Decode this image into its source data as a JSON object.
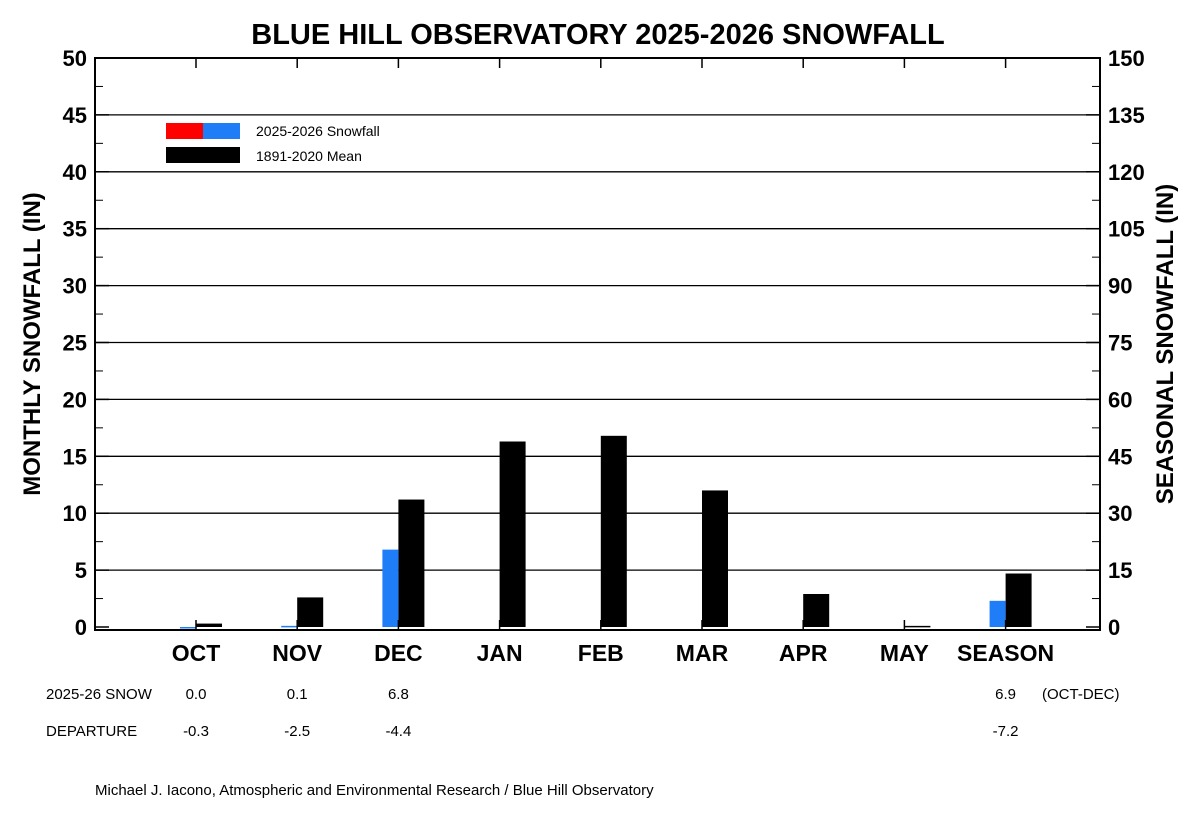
{
  "chart_data": {
    "type": "bar",
    "title": "BLUE HILL OBSERVATORY 2025-2026 SNOWFALL",
    "ylabel": "MONTHLY SNOWFALL (IN)",
    "ylabel_right": "SEASONAL SNOWFALL (IN)",
    "ylim": [
      0,
      50
    ],
    "ylim_right": [
      0,
      150
    ],
    "yticks": [
      0,
      5,
      10,
      15,
      20,
      25,
      30,
      35,
      40,
      45,
      50
    ],
    "yticks_right": [
      0,
      15,
      30,
      45,
      60,
      75,
      90,
      105,
      120,
      135,
      150
    ],
    "grid": true,
    "categories": [
      "OCT",
      "NOV",
      "DEC",
      "JAN",
      "FEB",
      "MAR",
      "APR",
      "MAY",
      "SEASON"
    ],
    "series": [
      {
        "name": "2025-2026 Snowfall",
        "color": "#1e7df7",
        "axis": "left (months) / right (SEASON)",
        "values": [
          0.0,
          0.1,
          6.8,
          null,
          null,
          null,
          null,
          null,
          6.9
        ]
      },
      {
        "name": "1891-2020 Mean",
        "color": "#000000",
        "axis": "left (months) / right (SEASON)",
        "values": [
          0.3,
          2.6,
          11.2,
          16.3,
          16.8,
          12.0,
          2.9,
          0.1,
          14.1
        ]
      }
    ],
    "legend": {
      "placement": "top-left",
      "entries": [
        {
          "label": "2025-2026 Snowfall",
          "colors": [
            "#ff0000",
            "#1e7df7"
          ]
        },
        {
          "label": "1891-2020 Mean",
          "colors": [
            "#000000"
          ]
        }
      ]
    },
    "table": {
      "rows": [
        {
          "label": "2025-26 SNOW",
          "values": [
            "0.0",
            "0.1",
            "6.8",
            "",
            "",
            "",
            "",
            "",
            "6.9"
          ],
          "note": "(OCT-DEC)"
        },
        {
          "label": "DEPARTURE",
          "values": [
            "-0.3",
            "-2.5",
            "-4.4",
            "",
            "",
            "",
            "",
            "",
            "-7.2"
          ],
          "note": ""
        }
      ]
    },
    "credit": "Michael J. Iacono, Atmospheric and Environmental Research / Blue Hill Observatory"
  }
}
